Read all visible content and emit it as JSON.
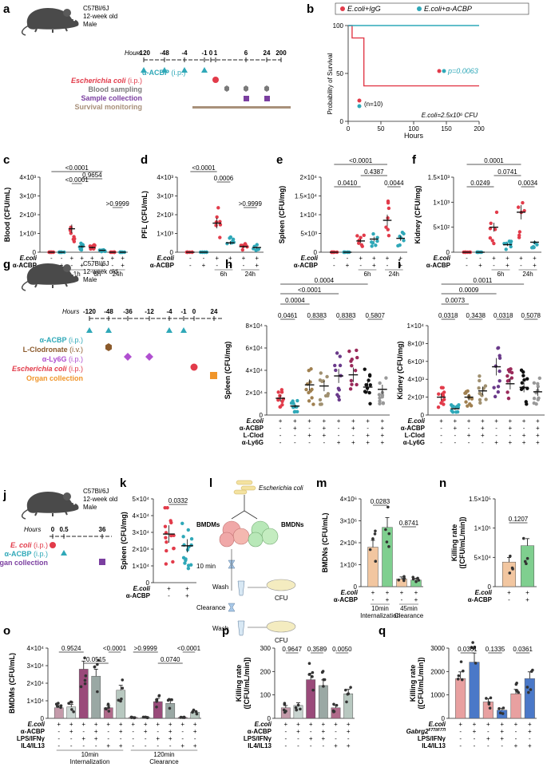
{
  "colors": {
    "ecoli": "#e23b4a",
    "acbp": "#2fa8b8",
    "blood": "#7a7a7a",
    "sample": "#7b3fa0",
    "survival": "#a8907a",
    "lclod": "#8b5a2b",
    "ly6g": "#b04fd0",
    "organ_orange": "#f0952a",
    "organ_purple": "#7b3fa0",
    "bmdm_orange": "#f2c6a0",
    "bmdm_green": "#7fcf8f",
    "bar_red": "#e8a0a0",
    "bar_blue": "#4a78c8",
    "bar_pink": "#c49aaa",
    "bar_gray": "#c8d4d0",
    "bar_plum": "#9a4a7a"
  },
  "panel_a": {
    "letter": "a",
    "mouse_lines": [
      "C57Bl/6J",
      "12-week old",
      "Male"
    ],
    "hours_label": "Hours",
    "ticks": [
      "-120",
      "-48",
      "-4",
      "-1",
      "0",
      "1",
      "6",
      "24",
      "200"
    ],
    "rows": [
      {
        "label": "α-ACBP",
        "suffix": " (i.p.)",
        "color": "#2fa8b8"
      },
      {
        "label": "Escherichia coli",
        "suffix": " (i.p.)",
        "color": "#e23b4a"
      },
      {
        "label": "Blood sampling",
        "suffix": "",
        "color": "#7a7a7a"
      },
      {
        "label": "Sample collection",
        "suffix": "",
        "color": "#7b3fa0"
      },
      {
        "label": "Survival monitoring",
        "suffix": "",
        "color": "#a8907a"
      }
    ]
  },
  "panel_b": {
    "letter": "b",
    "legend": [
      "E.coli+IgG",
      "E.coli+α-ACBP"
    ],
    "ylabel": "Probability of Survival",
    "xlabel": "Hours",
    "pvalue": "p=0.0063",
    "n_label": "(n=10)",
    "cfu_label": "E.coli=2.5x10⁶ CFU",
    "xticks": [
      "0",
      "50",
      "100",
      "150",
      "200"
    ],
    "yticks": [
      "0",
      "50",
      "100"
    ]
  },
  "chart_data": [
    {
      "type": "line",
      "panel": "b",
      "ylabel": "Probability of Survival",
      "xlabel": "Hours",
      "xlim": [
        0,
        200
      ],
      "ylim": [
        0,
        100
      ],
      "series": [
        {
          "name": "E.coli+IgG",
          "x": [
            0,
            6,
            6,
            24,
            24,
            200
          ],
          "y": [
            100,
            100,
            87,
            87,
            37,
            37
          ]
        },
        {
          "name": "E.coli+α-ACBP",
          "x": [
            0,
            200
          ],
          "y": [
            100,
            100
          ]
        }
      ]
    },
    {
      "type": "scatter",
      "panel": "c",
      "ylabel": "Blood (CFU/mL)",
      "ylim": [
        0,
        4000
      ],
      "groups": [
        "1h",
        "6h",
        "24h"
      ],
      "means": [
        0,
        0,
        1250,
        300,
        250,
        100,
        0,
        0
      ],
      "pvalues": [
        "<0.0001",
        "<0.0001",
        "0.9654",
        ">0.9999"
      ]
    },
    {
      "type": "scatter",
      "panel": "d",
      "ylabel": "PFL (CFU/mL)",
      "ylim": [
        0,
        4000
      ],
      "groups": [
        "6h",
        "24h"
      ],
      "means": [
        0,
        0,
        1550,
        500,
        300,
        250
      ],
      "pvalues": [
        "<0.0001",
        "0.0006",
        ">0.9999"
      ]
    },
    {
      "type": "scatter",
      "panel": "e",
      "ylabel": "Spleen (CFU/mg)",
      "ylim": [
        0,
        20000
      ],
      "groups": [
        "6h",
        "24h"
      ],
      "means": [
        0,
        0,
        3000,
        3500,
        8500,
        3700
      ],
      "pvalues": [
        "<0.0001",
        "0.4387",
        "0.0410",
        "0.0044"
      ]
    },
    {
      "type": "scatter",
      "panel": "f",
      "ylabel": "Kidney (CFU/mg)",
      "ylim": [
        0,
        1500
      ],
      "groups": [
        "6h",
        "24h"
      ],
      "means": [
        0,
        0,
        500,
        150,
        800,
        200
      ],
      "pvalues": [
        "0.0001",
        "0.0741",
        "0.0249",
        "0.0034"
      ]
    },
    {
      "type": "scatter",
      "panel": "h",
      "ylabel": "Spleen (CFU/mg)",
      "ylim": [
        0,
        80000
      ],
      "means": [
        15000,
        8000,
        27000,
        26000,
        35000,
        36000,
        25000,
        23000
      ],
      "pvalues": [
        "0.0004",
        "<0.0001",
        "0.0004",
        "0.0461",
        "0.8383",
        "0.8383",
        "0.5807"
      ]
    },
    {
      "type": "scatter",
      "panel": "i",
      "ylabel": "Kidney (CFU/mg)",
      "ylim": [
        0,
        10000
      ],
      "means": [
        2000,
        700,
        2000,
        2700,
        5400,
        3500,
        3100,
        2600
      ],
      "pvalues": [
        "0.0011",
        "0.0009",
        "0.0073",
        "0.0318",
        "0.3438",
        "0.0318",
        "0.5078"
      ]
    },
    {
      "type": "scatter",
      "panel": "k",
      "ylabel": "Spleen (CFU/mg)",
      "ylim": [
        0,
        50000
      ],
      "means": [
        29000,
        22000
      ],
      "pvalues": [
        "0.0332"
      ]
    },
    {
      "type": "bar",
      "panel": "m",
      "ylabel": "BMDNs (CFU/mL)",
      "ylim": [
        0,
        4000000
      ],
      "groups": [
        "10min Internalization",
        "45min Clearance"
      ],
      "values": [
        1800000,
        2700000,
        350000,
        300000
      ],
      "pvalues": [
        "0.0283",
        "0.8741"
      ]
    },
    {
      "type": "bar",
      "panel": "n",
      "ylabel": "Killing rate ([CFU/mL/min])",
      "ylim": [
        0,
        150000
      ],
      "values": [
        42000,
        70000
      ],
      "pvalues": [
        "0.1207"
      ]
    },
    {
      "type": "bar",
      "panel": "o",
      "ylabel": "BMDMs (CFU/mL)",
      "ylim": [
        0,
        40000
      ],
      "groups": [
        "10min Internalization",
        "120min Clearance"
      ],
      "values": [
        6000,
        6500,
        28000,
        24000,
        6000,
        16000,
        500,
        500,
        9500,
        8500,
        500,
        3500
      ],
      "pvalues": [
        "0.9524",
        "0.0515",
        "<0.0001",
        ">0.9999",
        "0.0740",
        "<0.0001"
      ]
    },
    {
      "type": "bar",
      "panel": "p",
      "ylabel": "Killing rate ([CFU/mL/min])",
      "ylim": [
        0,
        300
      ],
      "values": [
        45,
        55,
        165,
        140,
        45,
        105
      ],
      "pvalues": [
        "0.9647",
        "0.3589",
        "0.0050"
      ]
    },
    {
      "type": "bar",
      "panel": "q",
      "ylabel": "Killing rate ([CFU/mL/min])",
      "ylim": [
        0,
        3000
      ],
      "values": [
        1700,
        2400,
        700,
        350,
        1050,
        1700
      ],
      "pvalues": [
        "0.0361",
        "0.1335",
        "0.0361"
      ]
    }
  ],
  "letters": {
    "c": "c",
    "d": "d",
    "e": "e",
    "f": "f",
    "g": "g",
    "h": "h",
    "i": "i",
    "j": "j",
    "k": "k",
    "l": "l",
    "m": "m",
    "n": "n",
    "o": "o",
    "p": "p",
    "q": "q"
  },
  "panel_g": {
    "mouse_lines": [
      "C57Bl/6J",
      "12-week old",
      "Male"
    ],
    "hours_label": "Hours",
    "ticks": [
      "-120",
      "-48",
      "-36",
      "-12",
      "-4",
      "-1",
      "0",
      "24"
    ],
    "rows": [
      {
        "label": "α-ACBP",
        "suffix": " (i.p.)",
        "color": "#2fa8b8"
      },
      {
        "label": "L-Clodronate",
        "suffix": " (i.v.)",
        "color": "#8b5a2b"
      },
      {
        "label": "α-Ly6G",
        "suffix": " (i.p.)",
        "color": "#b04fd0"
      },
      {
        "label": "Escherichia coli",
        "suffix": " (i.p.)",
        "color": "#e23b4a"
      },
      {
        "label": "Organ collection",
        "suffix": "",
        "color": "#f0952a"
      }
    ]
  },
  "panel_j": {
    "mouse_lines": [
      "C57Bl/6J",
      "12-week old",
      "Male"
    ],
    "hours_label": "Hours",
    "ticks": [
      "0",
      "0.5",
      "36"
    ],
    "rows": [
      {
        "label": "E. coli",
        "suffix": " (i.p.)",
        "color": "#e23b4a"
      },
      {
        "label": "α-ACBP",
        "suffix": " (i.p.)",
        "color": "#2fa8b8"
      },
      {
        "label": "Organ collection",
        "suffix": "",
        "color": "#7b3fa0"
      }
    ]
  },
  "panel_l": {
    "title": "Escherichia coli",
    "left": "BMDMs",
    "right": "BMDNs",
    "step1": "10 min",
    "wash": "Wash",
    "clearance": "Clearance",
    "cfu": "CFU"
  },
  "labels": {
    "ecoli": "E.coli",
    "acbp": "α-ACBP",
    "lclod": "L-Clod",
    "ly6g": "α-Ly6G",
    "lps": "LPS/IFNγ",
    "il4": "IL4/IL13",
    "gabrg2": "Gabrg2",
    "gabrg2_sup": "F77I/F77I",
    "plus": "+",
    "minus": "-",
    "t1h": "1h",
    "t6h": "6h",
    "t24h": "24h",
    "internalization10": "10min",
    "internalization": "Internalization",
    "clearance45": "45min",
    "clearance120": "120min",
    "clearance": "Clearance",
    "blood_axis": "Blood (CFU/mL)",
    "pfl_axis": "PFL (CFU/mL)",
    "spleen_axis": "Spleen (CFU/mg)",
    "kidney_axis": "Kidney (CFU/mg)",
    "bmdn_axis": "BMDNs (CFU/mL)",
    "bmdm_axis": "BMDMs (CFU/mL)",
    "killing_axis": "Killing rate",
    "killing_unit": "([CFU/mL/min])",
    "ticks_c": [
      "0",
      "1×10³",
      "2×10³",
      "3×10³",
      "4×10³"
    ],
    "ticks_e": [
      "0",
      "5×10³",
      "1×10⁴",
      "1.5×10⁴",
      "2×10⁴"
    ],
    "ticks_f": [
      "0",
      "5×10²",
      "1×10³",
      "1.5×10³"
    ],
    "ticks_h": [
      "0",
      "2×10⁴",
      "4×10⁴",
      "6×10⁴",
      "8×10⁴"
    ],
    "ticks_i": [
      "0",
      "2×10³",
      "4×10³",
      "6×10³",
      "8×10³",
      "1×10⁴"
    ],
    "ticks_k": [
      "0",
      "1×10⁴",
      "2×10⁴",
      "3×10⁴",
      "4×10⁴",
      "5×10⁴"
    ],
    "ticks_m": [
      "0",
      "1×10⁶",
      "2×10⁶",
      "3×10⁶",
      "4×10⁶"
    ],
    "ticks_n": [
      "0",
      "5×10⁴",
      "1×10⁵",
      "1.5×10⁵"
    ],
    "ticks_o": [
      "0",
      "1×10⁴",
      "2×10⁴",
      "3×10⁴",
      "4×10⁴"
    ],
    "ticks_p": [
      "0",
      "100",
      "200",
      "300"
    ],
    "ticks_q": [
      "0",
      "1000",
      "2000",
      "3000"
    ]
  }
}
